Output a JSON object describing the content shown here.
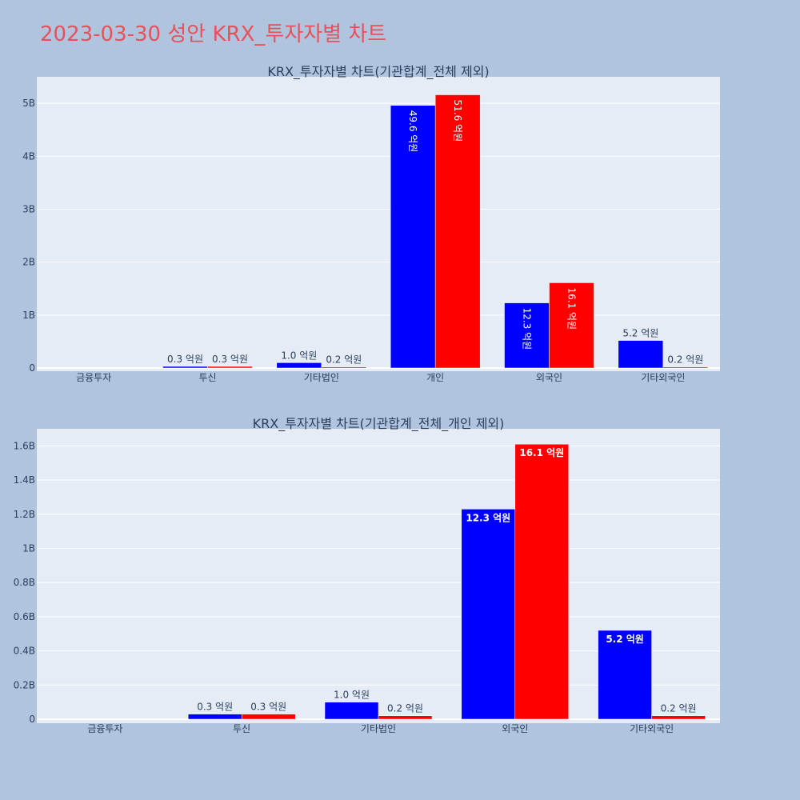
{
  "title": "2023-03-30 성안 KRX_투자자별 차트",
  "colors": {
    "buy": "#0000ff",
    "sell": "#ff0000",
    "plot_bg": "#e5ecf6",
    "page_bg": "#b0c4de",
    "title": "#e8505b"
  },
  "chart_data": [
    {
      "type": "bar",
      "title": "KRX_투자자별 차트(기관합계_전체 제외)",
      "categories": [
        "금융투자",
        "투신",
        "기타법인",
        "개인",
        "외국인",
        "기타외국인"
      ],
      "series": [
        {
          "values": [
            0,
            30000000,
            100000000,
            4960000000,
            1230000000,
            520000000
          ],
          "labels": [
            "",
            "0.3 억원",
            "1.0 억원",
            "49.6 억원",
            "12.3 억원",
            "5.2 억원"
          ]
        },
        {
          "values": [
            0,
            30000000,
            20000000,
            5160000000,
            1610000000,
            20000000
          ],
          "labels": [
            "",
            "0.3 억원",
            "0.2 억원",
            "51.6 억원",
            "16.1 억원",
            "0.2 억원"
          ]
        }
      ],
      "yticks": [
        "0",
        "1B",
        "2B",
        "3B",
        "4B",
        "5B"
      ],
      "ytick_values": [
        0,
        1000000000,
        2000000000,
        3000000000,
        4000000000,
        5000000000
      ],
      "ylim": [
        0,
        5500000000
      ],
      "grid": true,
      "label_orientation": "vertical"
    },
    {
      "type": "bar",
      "title": "KRX_투자자별 차트(기관합계_전체_개인 제외)",
      "categories": [
        "금융투자",
        "투신",
        "기타법인",
        "외국인",
        "기타외국인"
      ],
      "series": [
        {
          "values": [
            0,
            30000000,
            100000000,
            1230000000,
            520000000
          ],
          "labels": [
            "",
            "0.3 억원",
            "1.0 억원",
            "12.3 억원",
            "5.2 억원"
          ]
        },
        {
          "values": [
            0,
            30000000,
            20000000,
            1610000000,
            20000000
          ],
          "labels": [
            "",
            "0.3 억원",
            "0.2 억원",
            "16.1 억원",
            "0.2 억원"
          ]
        }
      ],
      "yticks": [
        "0",
        "0.2B",
        "0.4B",
        "0.6B",
        "0.8B",
        "1B",
        "1.2B",
        "1.4B",
        "1.6B"
      ],
      "ytick_values": [
        0,
        200000000,
        400000000,
        600000000,
        800000000,
        1000000000,
        1200000000,
        1400000000,
        1600000000
      ],
      "ylim": [
        0,
        1700000000
      ],
      "grid": true,
      "label_orientation": "horizontal"
    }
  ]
}
